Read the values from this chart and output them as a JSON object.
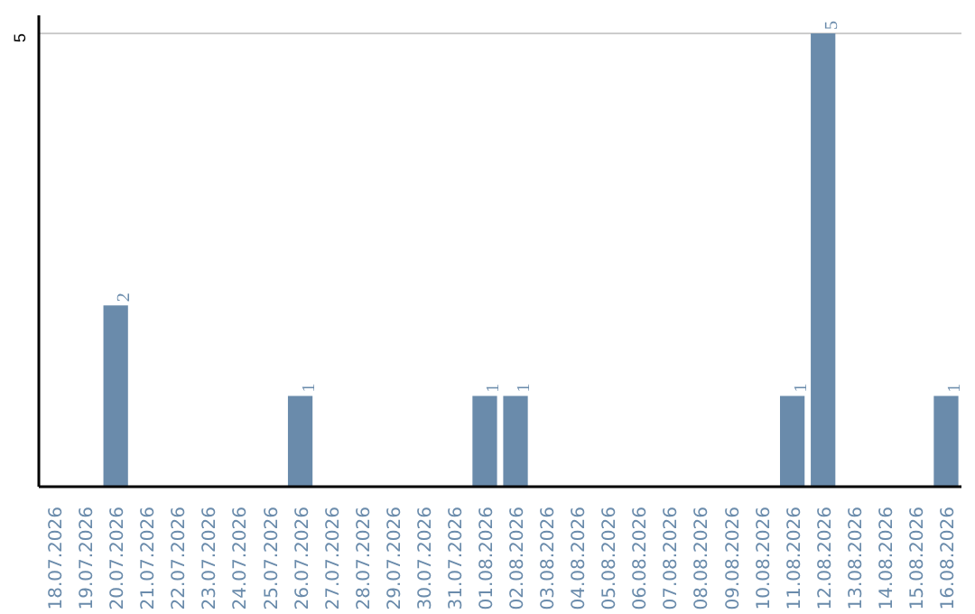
{
  "chart_data": {
    "type": "bar",
    "categories": [
      "18.07.2026",
      "19.07.2026",
      "20.07.2026",
      "21.07.2026",
      "22.07.2026",
      "23.07.2026",
      "24.07.2026",
      "25.07.2026",
      "26.07.2026",
      "27.07.2026",
      "28.07.2026",
      "29.07.2026",
      "30.07.2026",
      "31.07.2026",
      "01.08.2026",
      "02.08.2026",
      "03.08.2026",
      "04.08.2026",
      "05.08.2026",
      "06.08.2026",
      "07.08.2026",
      "08.08.2026",
      "09.08.2026",
      "10.08.2026",
      "11.08.2026",
      "12.08.2026",
      "13.08.2026",
      "14.08.2026",
      "15.08.2026",
      "16.08.2026"
    ],
    "values": [
      0,
      0,
      2,
      0,
      0,
      0,
      0,
      0,
      1,
      0,
      0,
      0,
      0,
      0,
      1,
      1,
      0,
      0,
      0,
      0,
      0,
      0,
      0,
      0,
      1,
      5,
      0,
      0,
      0,
      1
    ],
    "value_labels": [
      null,
      null,
      "2",
      null,
      null,
      null,
      null,
      null,
      "1",
      null,
      null,
      null,
      null,
      null,
      "1",
      "1",
      null,
      null,
      null,
      null,
      null,
      null,
      null,
      null,
      "1",
      "5",
      null,
      null,
      null,
      "1"
    ],
    "color": "#6a8bab",
    "ylim": [
      0,
      5.2
    ],
    "yticks": [
      5
    ],
    "grid": "y"
  }
}
